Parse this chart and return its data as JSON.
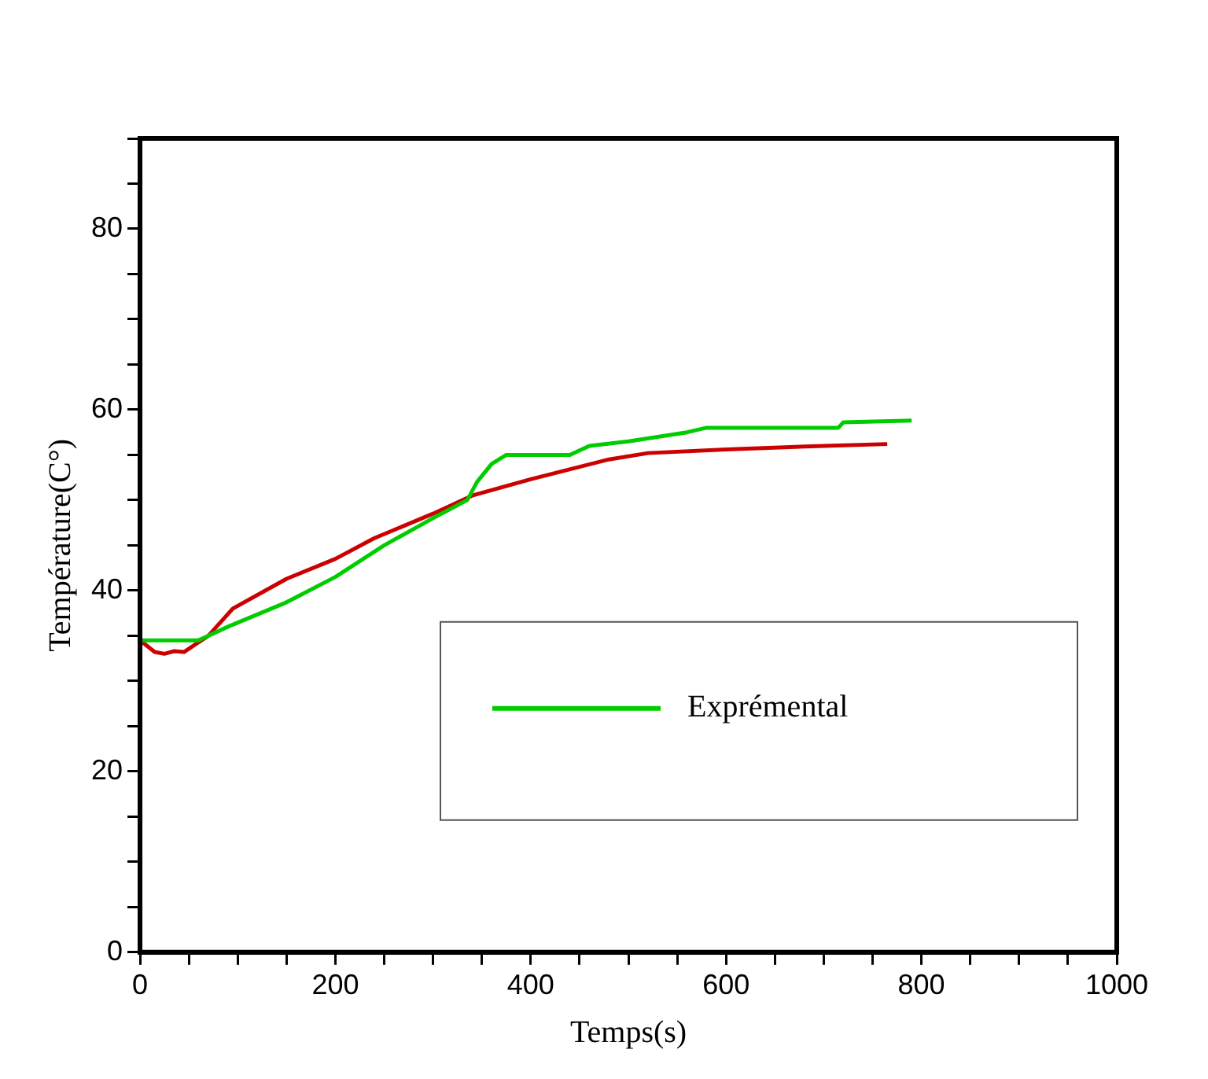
{
  "chart_data": {
    "type": "line",
    "xlabel": "Temps(s)",
    "ylabel": "Température(C°)",
    "xlim": [
      0,
      1000
    ],
    "ylim": [
      0,
      90
    ],
    "xticks": [
      0,
      {
        "value": 50,
        "label": null
      },
      {
        "value": 100,
        "label": null
      },
      {
        "value": 150,
        "label": null
      },
      200,
      {
        "value": 250,
        "label": null
      },
      {
        "value": 300,
        "label": null
      },
      {
        "value": 350,
        "label": null
      },
      400,
      {
        "value": 450,
        "label": null
      },
      {
        "value": 500,
        "label": null
      },
      {
        "value": 550,
        "label": null
      },
      600,
      {
        "value": 650,
        "label": null
      },
      {
        "value": 700,
        "label": null
      },
      {
        "value": 750,
        "label": null
      },
      800,
      {
        "value": 850,
        "label": null
      },
      {
        "value": 900,
        "label": null
      },
      {
        "value": 950,
        "label": null
      },
      1000
    ],
    "yticks": [
      0,
      {
        "value": 5,
        "label": null
      },
      {
        "value": 10,
        "label": null
      },
      {
        "value": 15,
        "label": null
      },
      20,
      {
        "value": 25,
        "label": null
      },
      {
        "value": 30,
        "label": null
      },
      {
        "value": 35,
        "label": null
      },
      40,
      {
        "value": 45,
        "label": null
      },
      {
        "value": 50,
        "label": null
      },
      {
        "value": 55,
        "label": null
      },
      60,
      {
        "value": 65,
        "label": null
      },
      {
        "value": 70,
        "label": null
      },
      {
        "value": 75,
        "label": null
      },
      80,
      {
        "value": 85,
        "label": null
      },
      {
        "value": 90,
        "label": null
      }
    ],
    "grid": false,
    "legend": "bottom right",
    "marker": "none",
    "line_style": "solid",
    "series": [
      {
        "name": "Exprémental",
        "color": "#00cc00",
        "x": [
          0,
          60,
          90,
          150,
          200,
          250,
          300,
          335,
          345,
          360,
          375,
          440,
          460,
          500,
          560,
          580,
          715,
          720,
          790
        ],
        "values": [
          34.5,
          34.5,
          36,
          38.7,
          41.5,
          45,
          48,
          50,
          52,
          54,
          55,
          55,
          56,
          56.5,
          57.5,
          58,
          58,
          58.6,
          58.8
        ]
      },
      {
        "color": "#cc0000",
        "x": [
          0,
          15,
          25,
          35,
          45,
          70,
          95,
          150,
          200,
          240,
          300,
          340,
          400,
          480,
          520,
          600,
          700,
          765
        ],
        "values": [
          34.5,
          33.2,
          33,
          33.3,
          33.2,
          35,
          38,
          41.3,
          43.5,
          45.8,
          48.5,
          50.5,
          52.3,
          54.5,
          55.2,
          55.6,
          56,
          56.2
        ]
      }
    ]
  }
}
